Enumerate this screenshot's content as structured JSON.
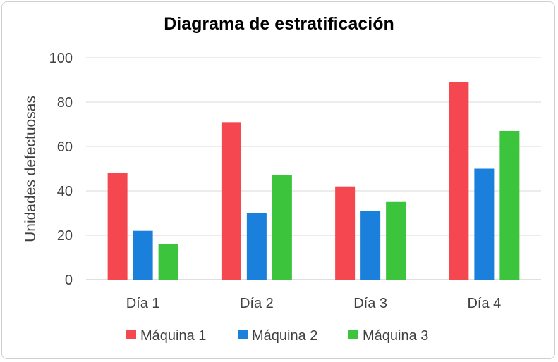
{
  "chart_data": {
    "type": "bar",
    "title": "Diagrama de estratificación",
    "xlabel": "",
    "ylabel": "Unidades defectuosas",
    "ylim": [
      0,
      100
    ],
    "yticks": [
      0,
      20,
      40,
      60,
      80,
      100
    ],
    "categories": [
      "Día 1",
      "Día 2",
      "Día 3",
      "Día 4"
    ],
    "series": [
      {
        "name": "Máquina 1",
        "color": "#f4474f",
        "values": [
          48,
          71,
          42,
          89
        ]
      },
      {
        "name": "Máquina 2",
        "color": "#1b7fdc",
        "values": [
          22,
          30,
          31,
          50
        ]
      },
      {
        "name": "Máquina 3",
        "color": "#3cc43c",
        "values": [
          16,
          47,
          35,
          67
        ]
      }
    ],
    "grid": true,
    "legend_position": "bottom"
  }
}
